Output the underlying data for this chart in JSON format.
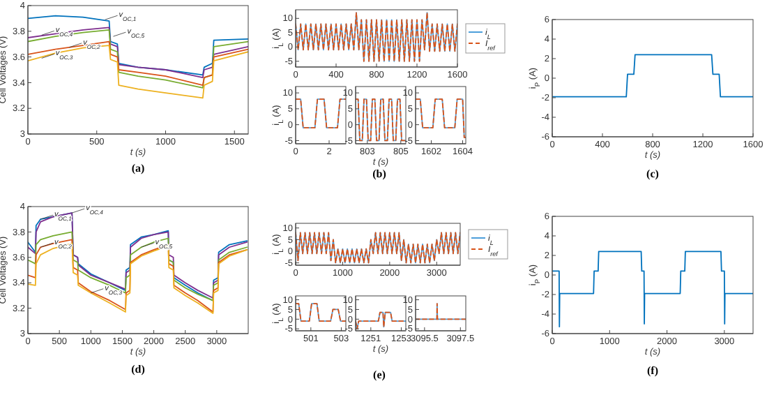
{
  "chart_data": [
    {
      "type": "line",
      "title": "(a)",
      "xlabel": "t (s)",
      "ylabel": "Cell Voltages (V)",
      "xlim": [
        0,
        1600
      ],
      "xticks": [
        0,
        500,
        1000,
        1500
      ],
      "ylim": [
        3,
        4
      ],
      "yticks": [
        3,
        3.2,
        3.4,
        3.6,
        3.8,
        4
      ],
      "grid": false,
      "legend": false,
      "x": [
        0,
        200,
        400,
        590,
        600,
        650,
        660,
        800,
        1000,
        1270,
        1280,
        1340,
        1350,
        1600
      ],
      "series": [
        {
          "color": "#0072bd",
          "values": [
            3.9,
            3.92,
            3.91,
            3.88,
            3.72,
            3.7,
            3.55,
            3.52,
            3.5,
            3.46,
            3.52,
            3.55,
            3.73,
            3.74
          ]
        },
        {
          "color": "#7e2f8e",
          "values": [
            3.75,
            3.78,
            3.81,
            3.83,
            3.7,
            3.68,
            3.54,
            3.52,
            3.5,
            3.44,
            3.5,
            3.52,
            3.62,
            3.68
          ]
        },
        {
          "color": "#77ac30",
          "values": [
            3.72,
            3.76,
            3.79,
            3.81,
            3.66,
            3.64,
            3.48,
            3.45,
            3.42,
            3.36,
            3.44,
            3.46,
            3.68,
            3.72
          ]
        },
        {
          "color": "#d95319",
          "values": [
            3.62,
            3.66,
            3.69,
            3.72,
            3.62,
            3.6,
            3.5,
            3.48,
            3.45,
            3.38,
            3.44,
            3.46,
            3.6,
            3.66
          ]
        },
        {
          "color": "#edb120",
          "values": [
            3.57,
            3.63,
            3.67,
            3.69,
            3.58,
            3.56,
            3.38,
            3.35,
            3.32,
            3.28,
            3.38,
            3.41,
            3.57,
            3.64
          ]
        }
      ],
      "annotations": [
        {
          "text": "v$_{OC,1}$",
          "x": 560,
          "y": 3.89
        },
        {
          "text": "v$_{OC,4}$",
          "x": 100,
          "y": 3.77
        },
        {
          "text": "v$_{OC,2}$",
          "x": 300,
          "y": 3.675
        },
        {
          "text": "v$_{OC,3}$",
          "x": 100,
          "y": 3.59
        },
        {
          "text": "v$_{OC,5}$",
          "x": 620,
          "y": 3.76
        }
      ]
    },
    {
      "type": "line",
      "title": "(b)",
      "ylabel": "i$_{L}$ (A)",
      "xlim": [
        0,
        1600
      ],
      "xticks": [
        0,
        400,
        800,
        1200,
        1600
      ],
      "ylim": [
        -7,
        13
      ],
      "yticks": [
        -5,
        0,
        5,
        10
      ],
      "grid": false,
      "legend": "right",
      "x": [
        0,
        25,
        50,
        75,
        100,
        125,
        150,
        175,
        200,
        225,
        250,
        275,
        300,
        325,
        350,
        375,
        400,
        425,
        450,
        475,
        500,
        525,
        550,
        575,
        600,
        625,
        650,
        675,
        700,
        725,
        750,
        775,
        800,
        825,
        850,
        875,
        900,
        925,
        950,
        975,
        1000,
        1025,
        1050,
        1075,
        1100,
        1125,
        1150,
        1175,
        1200,
        1225,
        1250,
        1275,
        1300,
        1325,
        1350,
        1375,
        1400,
        1425,
        1450,
        1475,
        1500,
        1525,
        1550,
        1575,
        1600
      ],
      "series": [
        {
          "name": "i$_{L}$",
          "color": "#4d9fdb",
          "line_style": "solid",
          "values": [
            8,
            -1,
            8,
            -1,
            8,
            -1,
            8,
            -1,
            8,
            -1,
            8,
            -1,
            8,
            -1,
            8,
            -1,
            8,
            -1,
            8,
            -1,
            8,
            -1,
            8,
            -1,
            12,
            -1,
            9.5,
            -5,
            9.5,
            -5,
            9.5,
            -5,
            9.5,
            -5,
            9.5,
            -5,
            9.5,
            -5,
            9.5,
            -5,
            9.5,
            -5,
            9.5,
            -5,
            9.5,
            -5,
            9.5,
            -5,
            9.5,
            -5,
            9.5,
            -1,
            12,
            -1.5,
            8,
            -1.5,
            8,
            -1.5,
            8,
            -1.5,
            8,
            -1.5,
            8,
            -1.5,
            8
          ]
        },
        {
          "name": "I$_{ref}$",
          "color": "#d95319",
          "line_style": "dashed",
          "values": [
            8,
            -1,
            8,
            -1,
            8,
            -1,
            8,
            -1,
            8,
            -1,
            8,
            -1,
            8,
            -1,
            8,
            -1,
            8,
            -1,
            8,
            -1,
            8,
            -1,
            8,
            -1,
            12,
            -1,
            9.5,
            -5,
            9.5,
            -5,
            9.5,
            -5,
            9.5,
            -5,
            9.5,
            -5,
            9.5,
            -5,
            9.5,
            -5,
            9.5,
            -5,
            9.5,
            -5,
            9.5,
            -5,
            9.5,
            -5,
            9.5,
            -5,
            9.5,
            -1,
            12,
            -1.5,
            8,
            -1.5,
            8,
            -1.5,
            8,
            -1.5,
            8,
            -1.5,
            8,
            -1.5,
            8
          ]
        }
      ]
    },
    {
      "type": "line",
      "ylabel": "i$_{L}$ (A)",
      "xlim": [
        0,
        3
      ],
      "xticks": [
        0,
        2
      ],
      "ylim": [
        -6,
        12
      ],
      "yticks": [
        -5,
        0,
        5,
        10
      ],
      "grid": false,
      "legend": false,
      "x": [
        0,
        0.3,
        0.45,
        1.15,
        1.3,
        1.7,
        1.85,
        2.5,
        2.65,
        3
      ],
      "series": [
        {
          "color": "#4d9fdb",
          "line_style": "solid",
          "values": [
            8,
            8,
            -1,
            -1,
            8,
            8,
            -1,
            -1,
            8,
            8
          ]
        },
        {
          "color": "#d95319",
          "line_style": "dashed",
          "values": [
            8,
            8,
            -1,
            -1,
            8,
            8,
            -1,
            -1,
            8,
            8
          ]
        }
      ]
    },
    {
      "type": "line",
      "xlabel": "t (s)",
      "xlim": [
        802.3,
        805.3
      ],
      "xticks": [
        803,
        805
      ],
      "ylim": [
        -6,
        12
      ],
      "yticks": [
        -5,
        0,
        5,
        10
      ],
      "grid": false,
      "legend": false,
      "x": [
        802.3,
        802.45,
        802.55,
        802.7,
        802.8,
        802.95,
        803.05,
        803.2,
        803.3,
        803.45,
        803.55,
        803.7,
        803.8,
        803.95,
        804.05,
        804.2,
        804.3,
        804.45,
        804.55,
        804.7,
        804.8,
        804.95,
        805.05,
        805.3
      ],
      "series": [
        {
          "color": "#4d9fdb",
          "line_style": "solid",
          "values": [
            8,
            8,
            -5,
            -5,
            8,
            8,
            -5,
            -5,
            8,
            8,
            -5,
            -5,
            8,
            8,
            -5,
            -5,
            8,
            8,
            -5,
            -5,
            8,
            8,
            -5,
            -5
          ]
        },
        {
          "color": "#d95319",
          "line_style": "dashed",
          "values": [
            8,
            8,
            -5,
            -5,
            8,
            8,
            -5,
            -5,
            8,
            8,
            -5,
            -5,
            8,
            8,
            -5,
            -5,
            8,
            8,
            -5,
            -5,
            8,
            8,
            -5,
            -5
          ]
        }
      ]
    },
    {
      "type": "line",
      "xlim": [
        1601,
        1604.2
      ],
      "xticks": [
        1602,
        1604
      ],
      "ylim": [
        -6,
        12
      ],
      "yticks": [
        -5,
        0,
        5,
        10
      ],
      "grid": false,
      "legend": false,
      "x": [
        1601,
        1601.3,
        1601.45,
        1602.1,
        1602.25,
        1602.7,
        1602.85,
        1603.5,
        1603.65,
        1604,
        1604.1,
        1604.2
      ],
      "series": [
        {
          "color": "#4d9fdb",
          "line_style": "solid",
          "values": [
            8,
            8,
            -1,
            -1,
            8,
            8,
            -1,
            -1,
            8,
            8,
            -4,
            -4
          ]
        },
        {
          "color": "#d95319",
          "line_style": "dashed",
          "values": [
            8,
            8,
            -1,
            -1,
            8,
            8,
            -1,
            -1,
            8,
            8,
            -4,
            -4
          ]
        }
      ]
    },
    {
      "type": "line",
      "title": "(c)",
      "xlabel": "t (s)",
      "ylabel": "i$_{P}$ (A)",
      "xlim": [
        0,
        1600
      ],
      "xticks": [
        0,
        400,
        800,
        1200,
        1600
      ],
      "ylim": [
        -6,
        6
      ],
      "yticks": [
        -6,
        -4,
        -2,
        0,
        2,
        4,
        6
      ],
      "grid": false,
      "legend": false,
      "x": [
        0,
        590,
        600,
        650,
        660,
        1270,
        1280,
        1330,
        1340,
        1600
      ],
      "series": [
        {
          "color": "#0072bd",
          "values": [
            -1.9,
            -1.9,
            0.4,
            0.4,
            2.4,
            2.4,
            0.4,
            0.4,
            -1.9,
            -1.9
          ]
        }
      ]
    },
    {
      "type": "line",
      "title": "(d)",
      "xlabel": "t (s)",
      "ylabel": "Cell Voltages (V)",
      "xlim": [
        0,
        3500
      ],
      "xticks": [
        0,
        500,
        1000,
        1500,
        2000,
        2500,
        3000
      ],
      "ylim": [
        3,
        4
      ],
      "yticks": [
        3,
        3.2,
        3.4,
        3.6,
        3.8,
        4
      ],
      "grid": false,
      "legend": false,
      "x": [
        0,
        120,
        130,
        200,
        400,
        700,
        720,
        790,
        800,
        1000,
        1300,
        1550,
        1560,
        1620,
        1630,
        1800,
        2000,
        2230,
        2240,
        2310,
        2320,
        2500,
        2700,
        2940,
        2950,
        3020,
        3030,
        3200,
        3480
      ],
      "series": [
        {
          "color": "#0072bd",
          "values": [
            3.72,
            3.64,
            3.85,
            3.9,
            3.92,
            3.95,
            3.62,
            3.6,
            3.55,
            3.47,
            3.4,
            3.34,
            3.5,
            3.52,
            3.7,
            3.76,
            3.78,
            3.81,
            3.58,
            3.56,
            3.44,
            3.38,
            3.32,
            3.26,
            3.42,
            3.44,
            3.64,
            3.7,
            3.73
          ]
        },
        {
          "color": "#7e2f8e",
          "values": [
            3.68,
            3.63,
            3.8,
            3.88,
            3.92,
            3.95,
            3.62,
            3.6,
            3.54,
            3.46,
            3.4,
            3.35,
            3.48,
            3.5,
            3.68,
            3.75,
            3.78,
            3.8,
            3.62,
            3.6,
            3.46,
            3.4,
            3.34,
            3.28,
            3.4,
            3.42,
            3.62,
            3.68,
            3.72
          ]
        },
        {
          "color": "#77ac30",
          "values": [
            3.58,
            3.55,
            3.7,
            3.74,
            3.77,
            3.8,
            3.58,
            3.56,
            3.5,
            3.44,
            3.38,
            3.32,
            3.44,
            3.46,
            3.62,
            3.68,
            3.72,
            3.75,
            3.58,
            3.56,
            3.42,
            3.36,
            3.31,
            3.26,
            3.38,
            3.4,
            3.58,
            3.64,
            3.68
          ]
        },
        {
          "color": "#d95319",
          "values": [
            3.46,
            3.44,
            3.62,
            3.68,
            3.71,
            3.74,
            3.52,
            3.5,
            3.4,
            3.33,
            3.26,
            3.19,
            3.32,
            3.34,
            3.56,
            3.62,
            3.66,
            3.7,
            3.55,
            3.53,
            3.38,
            3.32,
            3.26,
            3.17,
            3.34,
            3.36,
            3.56,
            3.62,
            3.66
          ]
        },
        {
          "color": "#edb120",
          "values": [
            3.39,
            3.38,
            3.55,
            3.62,
            3.67,
            3.71,
            3.48,
            3.46,
            3.38,
            3.32,
            3.24,
            3.17,
            3.3,
            3.32,
            3.55,
            3.61,
            3.65,
            3.69,
            3.52,
            3.5,
            3.36,
            3.3,
            3.24,
            3.16,
            3.32,
            3.34,
            3.55,
            3.61,
            3.66
          ]
        }
      ],
      "annotations": [
        {
          "text": "v$_{OC,1}$",
          "x": 200,
          "y": 3.9
        },
        {
          "text": "v$_{OC,4}$",
          "x": 700,
          "y": 3.95
        },
        {
          "text": "v$_{OC,5}$",
          "x": 1800,
          "y": 3.68
        },
        {
          "text": "v$_{OC,2}$",
          "x": 200,
          "y": 3.68
        },
        {
          "text": "v$_{OC,3}$",
          "x": 1000,
          "y": 3.32
        }
      ]
    },
    {
      "type": "line",
      "title": "(e)",
      "ylabel": "i$_{L}$ (A)",
      "xlim": [
        0,
        3500
      ],
      "xticks": [
        0,
        1000,
        2000,
        3000
      ],
      "ylim": [
        -6,
        12
      ],
      "yticks": [
        -5,
        0,
        5,
        10
      ],
      "grid": false,
      "legend": "right",
      "x": [
        0,
        50,
        100,
        150,
        200,
        250,
        300,
        350,
        400,
        450,
        500,
        550,
        600,
        650,
        700,
        750,
        800,
        850,
        900,
        950,
        1000,
        1050,
        1100,
        1150,
        1200,
        1250,
        1300,
        1350,
        1400,
        1450,
        1500,
        1550,
        1600,
        1650,
        1700,
        1750,
        1800,
        1850,
        1900,
        1950,
        2000,
        2050,
        2100,
        2150,
        2200,
        2250,
        2300,
        2350,
        2400,
        2450,
        2500,
        2550,
        2600,
        2650,
        2700,
        2750,
        2800,
        2850,
        2900,
        2950,
        3000,
        3050,
        3100,
        3150,
        3200,
        3250,
        3300,
        3350,
        3400,
        3450,
        3500
      ],
      "series": [
        {
          "name": "i$_{L}$",
          "color": "#4d9fdb",
          "line_style": "solid",
          "values": [
            8,
            -4,
            8,
            -1,
            8,
            -1,
            8,
            -1,
            8,
            -1,
            8,
            -1,
            8,
            -1,
            8,
            -4,
            5,
            -5,
            1,
            -5,
            1,
            -5,
            1,
            -5,
            1,
            -5,
            1,
            -5,
            1,
            -5,
            1,
            -5,
            5,
            -1,
            8,
            -1,
            8,
            -1,
            8,
            -1,
            8,
            -1,
            8,
            -1,
            8,
            -4,
            5,
            -5,
            3,
            -5,
            3,
            -5,
            3,
            -5,
            3,
            -5,
            3,
            -5,
            3,
            -4,
            5,
            -1,
            8,
            -1,
            8,
            -1,
            8,
            -1,
            8,
            -1,
            8
          ]
        },
        {
          "name": "I$_{ref}$",
          "color": "#d95319",
          "line_style": "dashed",
          "values": [
            8,
            -4,
            8,
            -1,
            8,
            -1,
            8,
            -1,
            8,
            -1,
            8,
            -1,
            8,
            -1,
            8,
            -4,
            5,
            -5,
            1,
            -5,
            1,
            -5,
            1,
            -5,
            1,
            -5,
            1,
            -5,
            1,
            -5,
            1,
            -5,
            5,
            -1,
            8,
            -1,
            8,
            -1,
            8,
            -1,
            8,
            -1,
            8,
            -1,
            8,
            -4,
            5,
            -5,
            3,
            -5,
            3,
            -5,
            3,
            -5,
            3,
            -5,
            3,
            -5,
            3,
            -4,
            5,
            -1,
            8,
            -1,
            8,
            -1,
            8,
            -1,
            8,
            -1,
            8
          ]
        }
      ]
    },
    {
      "type": "line",
      "ylabel": "i$_{L}$ (A)",
      "xlim": [
        500,
        503.3
      ],
      "xticks": [
        501,
        503
      ],
      "ylim": [
        -6,
        12
      ],
      "yticks": [
        -5,
        0,
        5,
        10
      ],
      "grid": false,
      "legend": false,
      "x": [
        500,
        500.2,
        500.35,
        500.9,
        501.05,
        501.4,
        501.55,
        502.3,
        502.45,
        502.8,
        502.95,
        503.3
      ],
      "series": [
        {
          "color": "#4d9fdb",
          "line_style": "solid",
          "values": [
            8,
            8,
            -1,
            -1,
            8,
            8,
            -1,
            -1,
            5,
            5,
            -1,
            -1
          ]
        },
        {
          "color": "#d95319",
          "line_style": "dashed",
          "values": [
            8,
            8,
            -1,
            -1,
            8,
            8,
            -1,
            -1,
            5,
            5,
            -1,
            -1
          ]
        }
      ]
    },
    {
      "type": "line",
      "xlabel": "t (s)",
      "xlim": [
        1250,
        1253.3
      ],
      "xticks": [
        1251,
        1253
      ],
      "ylim": [
        -6,
        12
      ],
      "yticks": [
        -5,
        0,
        5,
        10
      ],
      "grid": false,
      "legend": false,
      "x": [
        1250,
        1250.1,
        1250.2,
        1251.5,
        1251.6,
        1251.8,
        1251.85,
        1251.95,
        1252.3,
        1252.4,
        1253.3
      ],
      "series": [
        {
          "color": "#4d9fdb",
          "line_style": "solid",
          "values": [
            -1,
            -5,
            -1,
            -1,
            3.5,
            3.5,
            -4,
            3.5,
            3.5,
            -1,
            -1
          ]
        },
        {
          "color": "#d95319",
          "line_style": "dashed",
          "values": [
            -1,
            -5,
            -1,
            -1,
            3.5,
            3.5,
            -4,
            3.5,
            3.5,
            -1,
            -1
          ]
        }
      ]
    },
    {
      "type": "line",
      "xlim": [
        3095,
        3097.8
      ],
      "xticks": [
        3095.5,
        3097.5
      ],
      "ylim": [
        -6,
        12
      ],
      "yticks": [
        -5,
        0,
        5,
        10
      ],
      "grid": false,
      "legend": false,
      "x": [
        3095,
        3096.19,
        3096.2,
        3096.22,
        3097.8
      ],
      "series": [
        {
          "color": "#4d9fdb",
          "line_style": "solid",
          "values": [
            0,
            0,
            8,
            0,
            0
          ]
        },
        {
          "color": "#d95319",
          "line_style": "dashed",
          "values": [
            0,
            0,
            8,
            0,
            0
          ]
        }
      ]
    },
    {
      "type": "line",
      "title": "(f)",
      "xlabel": "t (s)",
      "ylabel": "i$_{P}$ (A)",
      "xlim": [
        0,
        3500
      ],
      "xticks": [
        0,
        1000,
        2000,
        3000
      ],
      "ylim": [
        -6,
        6
      ],
      "yticks": [
        -6,
        -4,
        -2,
        0,
        2,
        4,
        6
      ],
      "grid": false,
      "legend": false,
      "x": [
        0,
        120,
        125,
        130,
        720,
        730,
        800,
        810,
        1550,
        1560,
        1600,
        1605,
        1610,
        2230,
        2240,
        2310,
        2320,
        2940,
        2950,
        3000,
        3005,
        3010,
        3500
      ],
      "series": [
        {
          "color": "#0072bd",
          "values": [
            0.4,
            0.4,
            -5.3,
            -1.9,
            -1.9,
            0.4,
            0.4,
            2.4,
            2.4,
            0.4,
            0.4,
            -5,
            -1.9,
            -1.9,
            0.4,
            0.4,
            2.4,
            2.4,
            0.4,
            0.4,
            -5,
            -1.9,
            -1.9
          ]
        }
      ]
    }
  ]
}
